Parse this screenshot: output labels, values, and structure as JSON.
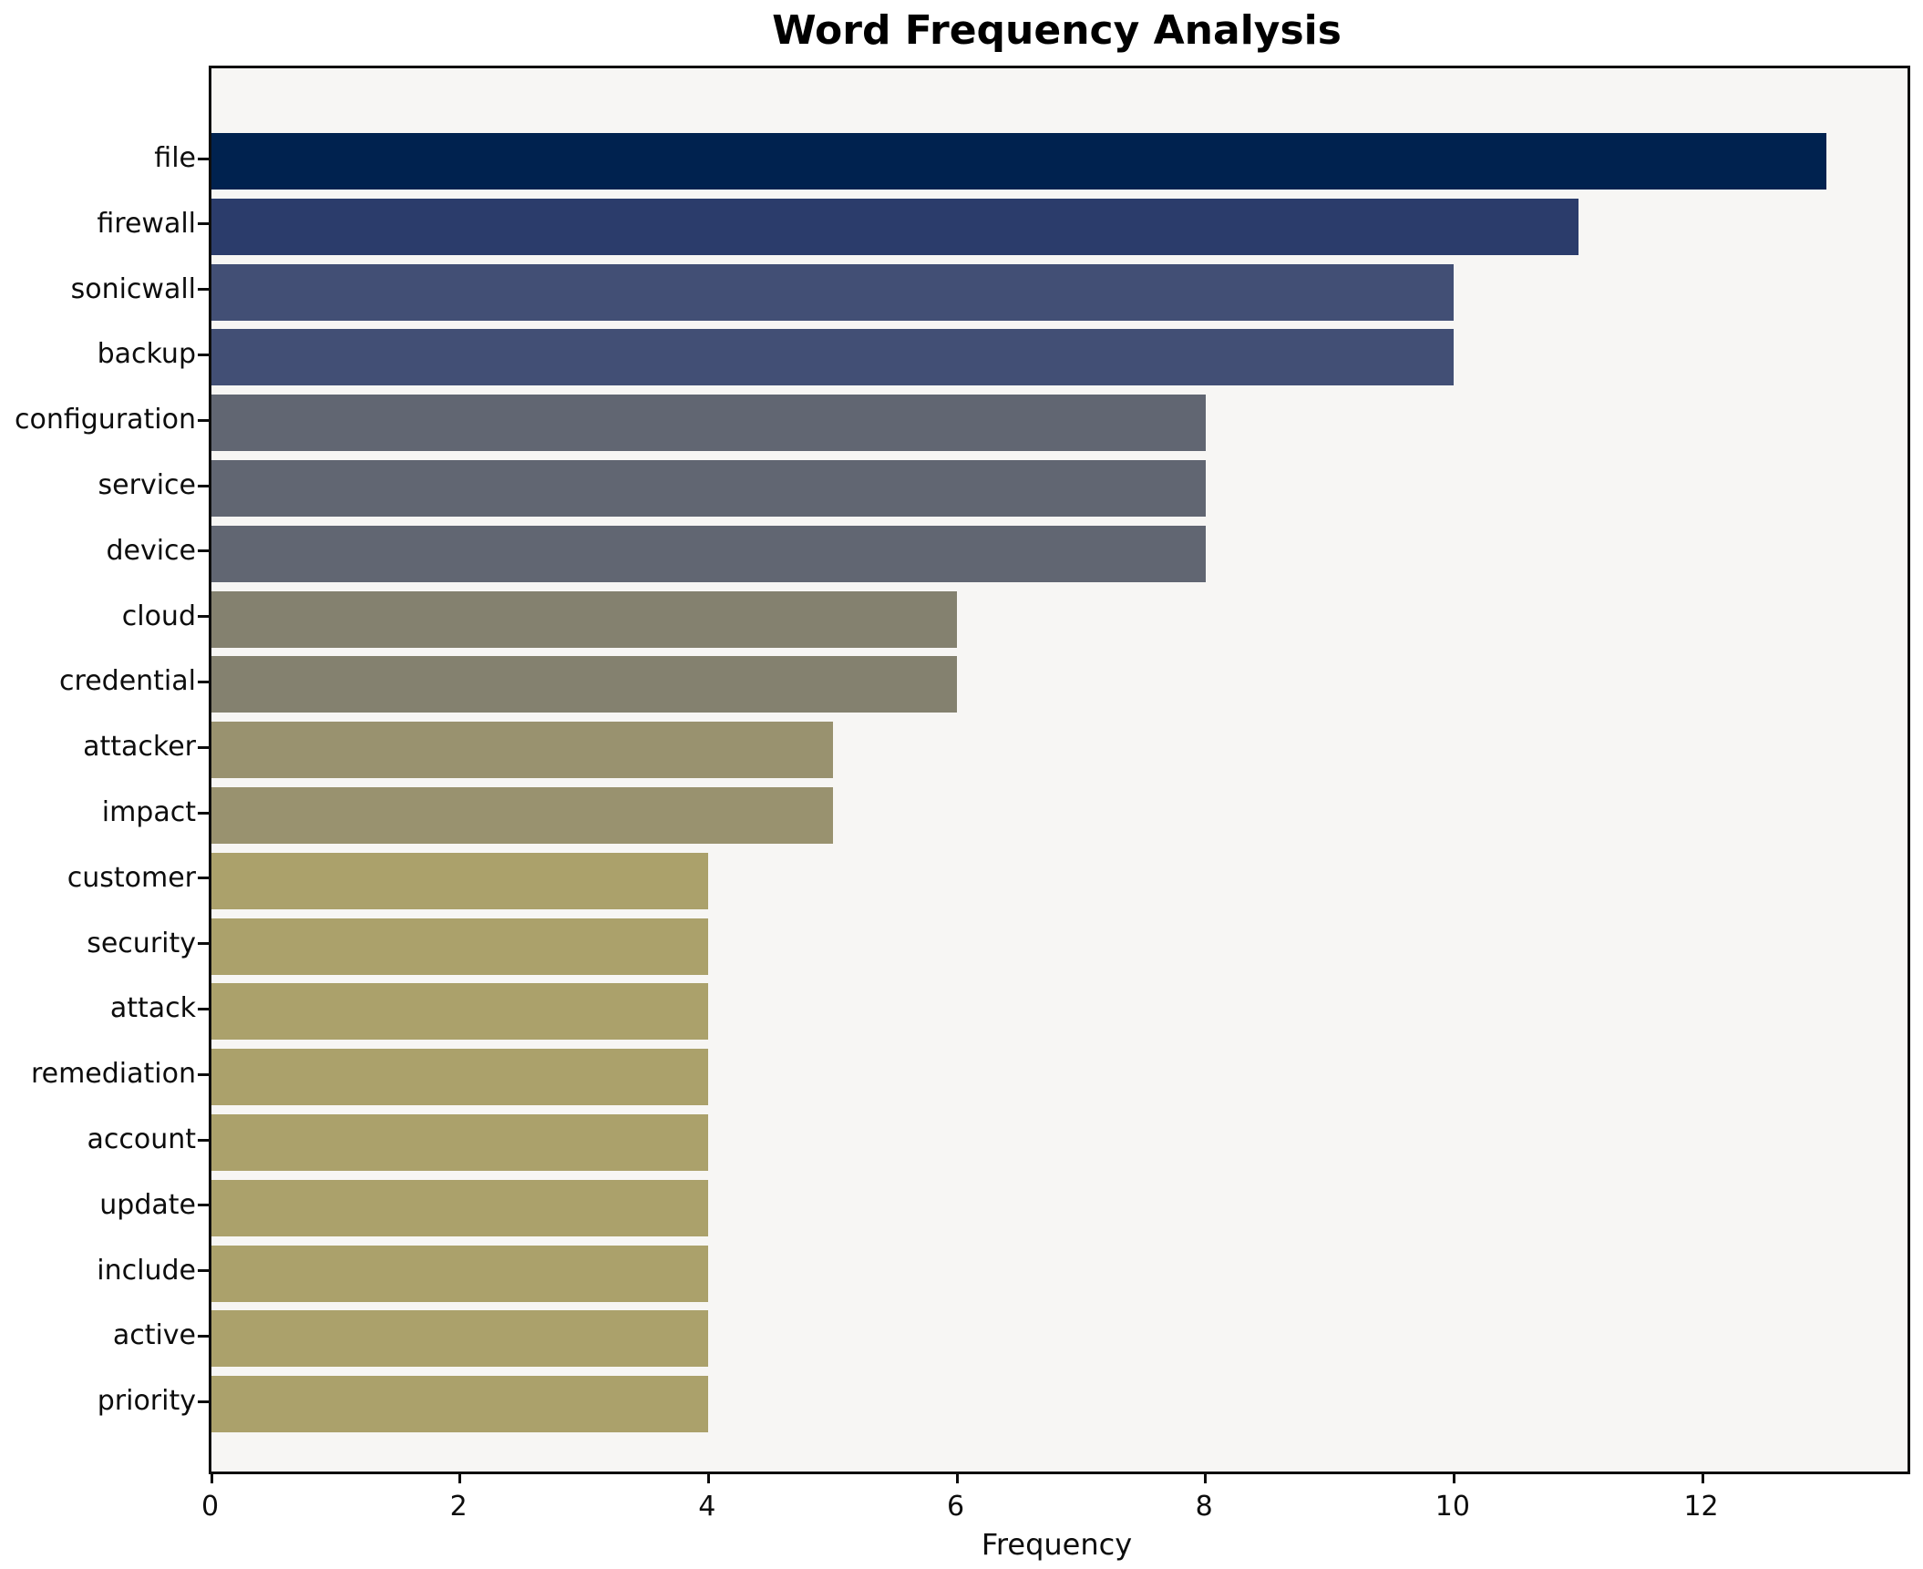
{
  "title": "Word Frequency Analysis",
  "chart_data": {
    "type": "bar",
    "orientation": "horizontal",
    "title": "Word Frequency Analysis",
    "xlabel": "Frequency",
    "ylabel": "",
    "categories": [
      "file",
      "firewall",
      "sonicwall",
      "backup",
      "configuration",
      "service",
      "device",
      "cloud",
      "credential",
      "attacker",
      "impact",
      "customer",
      "security",
      "attack",
      "remediation",
      "account",
      "update",
      "include",
      "active",
      "priority"
    ],
    "values": [
      13,
      11,
      10,
      10,
      8,
      8,
      8,
      6,
      6,
      5,
      5,
      4,
      4,
      4,
      4,
      4,
      4,
      4,
      4,
      4
    ],
    "bar_colors": [
      "#00224F",
      "#2B3C6B",
      "#424F75",
      "#424F75",
      "#616672",
      "#616672",
      "#616672",
      "#84816F",
      "#84816F",
      "#99926F",
      "#99926F",
      "#ABA16B",
      "#ABA16B",
      "#ABA16B",
      "#ABA16B",
      "#ABA16B",
      "#ABA16B",
      "#ABA16B",
      "#ABA16B",
      "#ABA16B"
    ],
    "xlim": [
      0,
      13.65
    ],
    "xticks": [
      0,
      2,
      4,
      6,
      8,
      10,
      12
    ],
    "grid": false,
    "legend": null,
    "plot_background": "#f7f6f4",
    "figure_background": "#ffffff",
    "spine_color": "#0d0d0d",
    "text_color": "#0d0d0d"
  }
}
